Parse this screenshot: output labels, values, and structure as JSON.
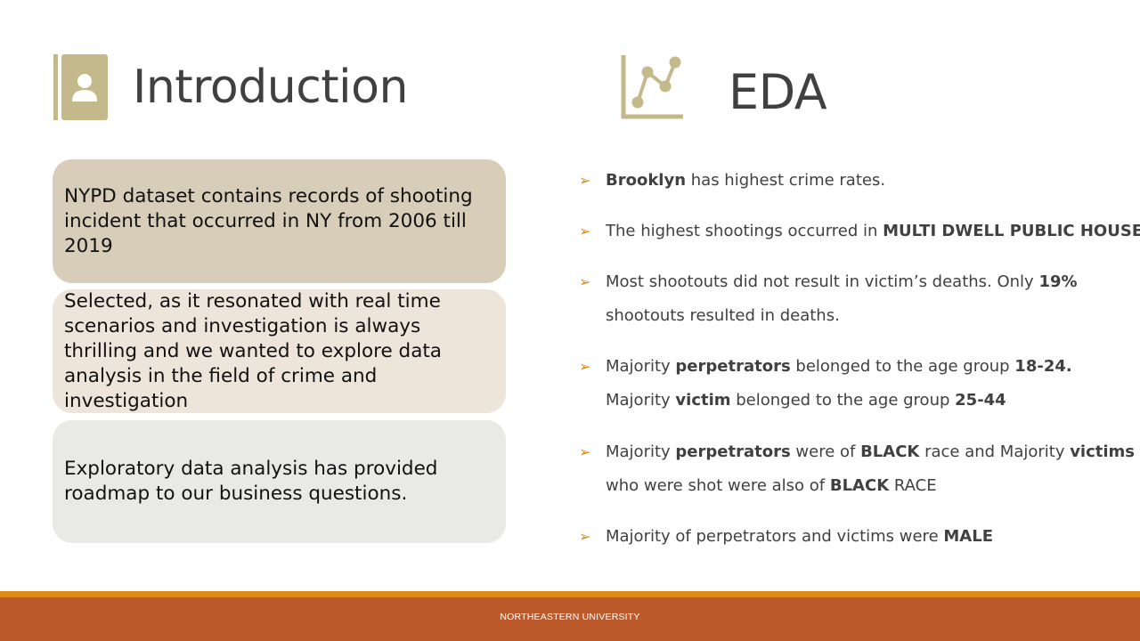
{
  "introduction": {
    "title": "Introduction",
    "icon": "contact-book-icon",
    "cards": [
      "NYPD dataset contains records of shooting incident that occurred in NY from 2006 till 2019",
      "Selected, as it resonated with real time scenarios and investigation is always thrilling and we wanted to explore data analysis in the field of crime and investigation",
      "Exploratory data analysis has provided roadmap to our business questions."
    ]
  },
  "eda": {
    "title": "EDA",
    "icon": "line-chart-icon",
    "bullet_icon": "arrow-bullet-icon",
    "bullets": [
      {
        "lines": [
          [
            {
              "t": "Brooklyn",
              "b": true
            },
            {
              "t": " has highest crime rates.",
              "b": false
            }
          ]
        ]
      },
      {
        "lines": [
          [
            {
              "t": "The highest shootings occurred in ",
              "b": false
            },
            {
              "t": "MULTI DWELL PUBLIC HOUSE",
              "b": true
            }
          ]
        ]
      },
      {
        "lines": [
          [
            {
              "t": "Most shootouts did not result in victim’s deaths. Only ",
              "b": false
            },
            {
              "t": "19%",
              "b": true
            }
          ],
          [
            {
              "t": "shootouts resulted in deaths.",
              "b": false
            }
          ]
        ]
      },
      {
        "lines": [
          [
            {
              "t": "Majority ",
              "b": false
            },
            {
              "t": "perpetrators",
              "b": true
            },
            {
              "t": " belonged to the age group ",
              "b": false
            },
            {
              "t": "18-24.",
              "b": true
            }
          ],
          [
            {
              "t": "Majority ",
              "b": false
            },
            {
              "t": "victim",
              "b": true
            },
            {
              "t": " belonged to the age group ",
              "b": false
            },
            {
              "t": "25-44",
              "b": true
            }
          ]
        ]
      },
      {
        "lines": [
          [
            {
              "t": "Majority ",
              "b": false
            },
            {
              "t": "perpetrators",
              "b": true
            },
            {
              "t": " were of ",
              "b": false
            },
            {
              "t": "BLACK",
              "b": true
            },
            {
              "t": " race and Majority ",
              "b": false
            },
            {
              "t": "victims",
              "b": true
            }
          ],
          [
            {
              "t": "who were shot were also of ",
              "b": false
            },
            {
              "t": "BLACK",
              "b": true
            },
            {
              "t": " RACE",
              "b": false
            }
          ]
        ]
      },
      {
        "lines": [
          [
            {
              "t": "Majority of perpetrators and victims were ",
              "b": false
            },
            {
              "t": "MALE",
              "b": true
            }
          ]
        ]
      }
    ]
  },
  "footer": {
    "text": "NORTHEASTERN UNIVERSITY"
  },
  "colors": {
    "accent_olive": "#c4b98a",
    "card_1": "#d8cdb9",
    "card_2": "#ede4da",
    "card_3": "#e9eae6",
    "bullet_arrow": "#e08a1a",
    "footer_stripe": "#e08a1a",
    "footer_bar": "#bd5a2b"
  }
}
